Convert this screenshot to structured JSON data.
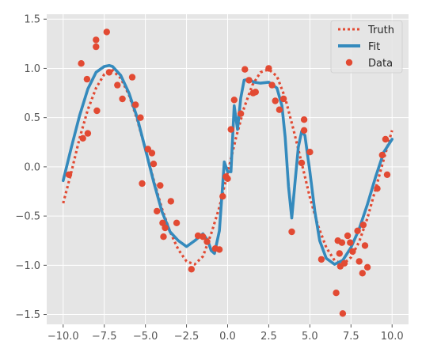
{
  "chart_data": {
    "type": "scatter",
    "xlim": [
      -11,
      11
    ],
    "ylim": [
      -1.6,
      1.55
    ],
    "grid": true,
    "legend": {
      "placement": "top-right",
      "entries": [
        "Truth",
        "Fit",
        "Data"
      ]
    },
    "x_ticks": [
      -10.0,
      -7.5,
      -5.0,
      -2.5,
      0.0,
      2.5,
      5.0,
      7.5,
      10.0
    ],
    "x_tick_labels": [
      "−10.0",
      "−7.5",
      "−5.0",
      "−2.5",
      "0.0",
      "2.5",
      "5.0",
      "7.5",
      "10.0"
    ],
    "y_ticks": [
      -1.5,
      -1.0,
      -0.5,
      0.0,
      0.5,
      1.0,
      1.5
    ],
    "y_tick_labels": [
      "−1.5",
      "−1.0",
      "−0.5",
      "0.0",
      "0.5",
      "1.0",
      "1.5"
    ],
    "colors": {
      "truth": "#E24A33",
      "fit": "#348ABD",
      "data": "#E24A33",
      "background": "#E5E5E5",
      "grid": "#FFFFFF"
    },
    "series": [
      {
        "name": "Truth",
        "style": "dotted-line",
        "x": [
          -10.0,
          -9.5,
          -9.0,
          -8.5,
          -8.0,
          -7.5,
          -7.0,
          -6.5,
          -6.0,
          -5.5,
          -5.0,
          -4.5,
          -4.0,
          -3.5,
          -3.0,
          -2.5,
          -2.0,
          -1.5,
          -1.0,
          -0.5,
          0.0,
          0.5,
          1.0,
          1.5,
          2.0,
          2.5,
          3.0,
          3.5,
          4.0,
          4.5,
          5.0,
          5.5,
          6.0,
          6.5,
          7.0,
          7.5,
          8.0,
          8.5,
          9.0,
          9.5,
          10.0
        ],
        "y": [
          -0.37,
          -0.05,
          0.29,
          0.58,
          0.8,
          0.94,
          0.98,
          0.9,
          0.73,
          0.48,
          0.18,
          -0.13,
          -0.42,
          -0.66,
          -0.84,
          -0.96,
          -0.99,
          -0.91,
          -0.68,
          -0.41,
          -0.06,
          0.29,
          0.6,
          0.83,
          0.96,
          0.99,
          0.92,
          0.7,
          0.38,
          0.04,
          -0.31,
          -0.6,
          -0.82,
          -0.95,
          -0.99,
          -0.92,
          -0.76,
          -0.52,
          -0.22,
          0.08,
          0.37
        ]
      },
      {
        "name": "Fit",
        "style": "solid-line",
        "x": [
          -10.0,
          -9.5,
          -9.0,
          -8.5,
          -8.0,
          -7.5,
          -7.2,
          -7.0,
          -6.5,
          -6.0,
          -5.5,
          -5.0,
          -4.5,
          -4.0,
          -3.5,
          -3.0,
          -2.5,
          -2.0,
          -1.5,
          -1.2,
          -1.0,
          -0.8,
          -0.5,
          -0.2,
          0.0,
          0.2,
          0.4,
          0.6,
          0.8,
          1.0,
          1.3,
          1.6,
          2.0,
          2.5,
          3.0,
          3.3,
          3.5,
          3.7,
          3.9,
          4.1,
          4.3,
          4.5,
          4.7,
          5.0,
          5.3,
          5.6,
          6.0,
          6.5,
          7.0,
          7.5,
          8.0,
          8.5,
          9.0,
          9.5,
          10.0
        ],
        "y": [
          -0.14,
          0.2,
          0.52,
          0.79,
          0.96,
          1.02,
          1.03,
          1.02,
          0.93,
          0.75,
          0.5,
          0.18,
          -0.15,
          -0.45,
          -0.66,
          -0.75,
          -0.81,
          -0.75,
          -0.68,
          -0.75,
          -0.85,
          -0.88,
          -0.65,
          0.05,
          -0.05,
          -0.05,
          0.62,
          0.38,
          0.7,
          0.88,
          0.89,
          0.86,
          0.85,
          0.86,
          0.8,
          0.62,
          0.3,
          -0.2,
          -0.52,
          -0.15,
          0.2,
          0.36,
          0.32,
          -0.05,
          -0.45,
          -0.75,
          -0.93,
          -0.99,
          -0.95,
          -0.82,
          -0.63,
          -0.38,
          -0.1,
          0.15,
          0.28
        ]
      },
      {
        "name": "Data",
        "style": "points",
        "x": [
          -9.65,
          -8.9,
          -8.8,
          -8.55,
          -8.5,
          -8.0,
          -8.0,
          -7.95,
          -7.35,
          -7.2,
          -6.7,
          -6.4,
          -5.8,
          -5.6,
          -5.3,
          -5.2,
          -4.85,
          -4.6,
          -4.5,
          -4.3,
          -4.1,
          -3.95,
          -3.9,
          -3.8,
          -3.45,
          -3.1,
          -2.2,
          -1.8,
          -1.5,
          -1.25,
          -0.75,
          -0.5,
          -0.3,
          -0.1,
          0.0,
          0.2,
          0.4,
          0.8,
          1.05,
          1.3,
          1.55,
          1.7,
          2.5,
          2.7,
          2.9,
          3.15,
          3.4,
          3.9,
          4.5,
          4.65,
          4.65,
          5.0,
          5.7,
          6.6,
          6.7,
          6.8,
          6.85,
          6.95,
          7.0,
          7.1,
          7.3,
          7.45,
          7.6,
          7.9,
          8.0,
          8.2,
          8.25,
          8.35,
          8.5,
          9.1,
          9.4,
          9.6,
          9.7
        ],
        "y": [
          -0.08,
          1.05,
          0.29,
          0.89,
          0.34,
          1.29,
          1.22,
          0.57,
          1.37,
          0.96,
          0.83,
          0.69,
          0.91,
          0.63,
          0.5,
          -0.17,
          0.18,
          0.14,
          0.03,
          -0.45,
          -0.19,
          -0.57,
          -0.71,
          -0.62,
          -0.35,
          -0.57,
          -1.04,
          -0.7,
          -0.71,
          -0.76,
          -0.83,
          -0.84,
          -0.3,
          -0.1,
          -0.12,
          0.38,
          0.68,
          0.54,
          0.99,
          0.88,
          0.75,
          0.76,
          1.0,
          0.83,
          0.67,
          0.58,
          0.69,
          -0.66,
          0.04,
          0.37,
          0.48,
          0.15,
          -0.94,
          -1.28,
          -0.75,
          -0.88,
          -1.01,
          -0.77,
          -1.49,
          -0.98,
          -0.7,
          -0.77,
          -0.86,
          -0.65,
          -0.96,
          -1.08,
          -0.59,
          -0.8,
          -1.02,
          -0.22,
          0.12,
          0.28,
          -0.08
        ]
      }
    ]
  }
}
